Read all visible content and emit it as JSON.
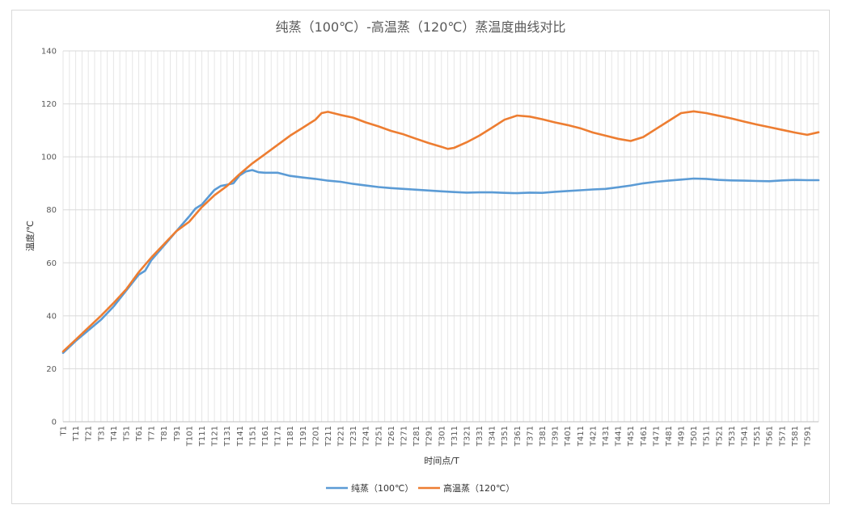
{
  "chart_data": {
    "type": "line",
    "title": "纯蒸（100℃）-高温蒸（120℃）蒸温度曲线对比",
    "xlabel": "时间点/T",
    "ylabel": "温度/℃",
    "ylim": [
      0,
      140
    ],
    "yticks": [
      0,
      20,
      40,
      60,
      80,
      100,
      120,
      140
    ],
    "x_range": [
      1,
      600
    ],
    "x_ticks": [
      "T1",
      "T11",
      "T21",
      "T31",
      "T41",
      "T51",
      "T61",
      "T71",
      "T81",
      "T91",
      "T101",
      "T111",
      "T121",
      "T131",
      "T141",
      "T151",
      "T161",
      "T171",
      "T181",
      "T191",
      "T201",
      "T211",
      "T221",
      "T231",
      "T241",
      "T251",
      "T261",
      "T271",
      "T281",
      "T291",
      "T301",
      "T311",
      "T321",
      "T331",
      "T341",
      "T351",
      "T361",
      "T371",
      "T381",
      "T391",
      "T401",
      "T411",
      "T421",
      "T431",
      "T441",
      "T451",
      "T461",
      "T471",
      "T481",
      "T491",
      "T501",
      "T511",
      "T521",
      "T531",
      "T541",
      "T551",
      "T561",
      "T571",
      "T581",
      "T591"
    ],
    "grid": true,
    "legend_position": "bottom",
    "series": [
      {
        "name": "纯蒸（100℃）",
        "color": "#5b9bd5",
        "points": [
          [
            1,
            26
          ],
          [
            11,
            30.5
          ],
          [
            21,
            34.5
          ],
          [
            31,
            38.5
          ],
          [
            41,
            43.5
          ],
          [
            51,
            49.5
          ],
          [
            61,
            55.5
          ],
          [
            66,
            57
          ],
          [
            71,
            61
          ],
          [
            81,
            66.5
          ],
          [
            91,
            72
          ],
          [
            101,
            77.5
          ],
          [
            106,
            80.5
          ],
          [
            111,
            82
          ],
          [
            121,
            87.5
          ],
          [
            126,
            89
          ],
          [
            131,
            89.5
          ],
          [
            136,
            90
          ],
          [
            141,
            93
          ],
          [
            146,
            94.5
          ],
          [
            151,
            95
          ],
          [
            156,
            94.2
          ],
          [
            161,
            94
          ],
          [
            171,
            94
          ],
          [
            181,
            92.8
          ],
          [
            191,
            92.2
          ],
          [
            201,
            91.7
          ],
          [
            211,
            91
          ],
          [
            221,
            90.6
          ],
          [
            231,
            89.8
          ],
          [
            241,
            89.2
          ],
          [
            251,
            88.6
          ],
          [
            261,
            88.2
          ],
          [
            271,
            87.9
          ],
          [
            281,
            87.6
          ],
          [
            291,
            87.3
          ],
          [
            301,
            87
          ],
          [
            311,
            86.7
          ],
          [
            321,
            86.5
          ],
          [
            331,
            86.6
          ],
          [
            341,
            86.6
          ],
          [
            351,
            86.4
          ],
          [
            361,
            86.3
          ],
          [
            371,
            86.5
          ],
          [
            381,
            86.4
          ],
          [
            391,
            86.8
          ],
          [
            401,
            87.1
          ],
          [
            411,
            87.4
          ],
          [
            421,
            87.7
          ],
          [
            431,
            87.9
          ],
          [
            441,
            88.5
          ],
          [
            451,
            89.2
          ],
          [
            461,
            90
          ],
          [
            471,
            90.6
          ],
          [
            481,
            91
          ],
          [
            491,
            91.4
          ],
          [
            501,
            91.8
          ],
          [
            511,
            91.7
          ],
          [
            521,
            91.3
          ],
          [
            531,
            91.1
          ],
          [
            541,
            91
          ],
          [
            551,
            90.9
          ],
          [
            561,
            90.8
          ],
          [
            571,
            91.1
          ],
          [
            581,
            91.3
          ],
          [
            591,
            91.2
          ],
          [
            600,
            91.2
          ]
        ]
      },
      {
        "name": "高温蒸（120℃）",
        "color": "#ed7d31",
        "points": [
          [
            1,
            26.5
          ],
          [
            11,
            31
          ],
          [
            21,
            35.5
          ],
          [
            31,
            40
          ],
          [
            41,
            44.8
          ],
          [
            51,
            50
          ],
          [
            61,
            56.5
          ],
          [
            71,
            62
          ],
          [
            81,
            67
          ],
          [
            91,
            72
          ],
          [
            101,
            75.5
          ],
          [
            111,
            81
          ],
          [
            121,
            85.5
          ],
          [
            131,
            89
          ],
          [
            141,
            93.5
          ],
          [
            151,
            97.5
          ],
          [
            161,
            101
          ],
          [
            171,
            104.5
          ],
          [
            181,
            108
          ],
          [
            191,
            111
          ],
          [
            201,
            114
          ],
          [
            206,
            116.5
          ],
          [
            211,
            117
          ],
          [
            221,
            115.8
          ],
          [
            231,
            114.8
          ],
          [
            241,
            113
          ],
          [
            251,
            111.5
          ],
          [
            261,
            109.8
          ],
          [
            271,
            108.5
          ],
          [
            281,
            106.8
          ],
          [
            291,
            105.2
          ],
          [
            301,
            103.8
          ],
          [
            306,
            103
          ],
          [
            311,
            103.4
          ],
          [
            321,
            105.5
          ],
          [
            331,
            108
          ],
          [
            341,
            111
          ],
          [
            351,
            114
          ],
          [
            361,
            115.6
          ],
          [
            371,
            115.2
          ],
          [
            381,
            114.2
          ],
          [
            391,
            113
          ],
          [
            401,
            112
          ],
          [
            411,
            110.8
          ],
          [
            421,
            109.2
          ],
          [
            431,
            108
          ],
          [
            441,
            106.8
          ],
          [
            451,
            106
          ],
          [
            461,
            107.5
          ],
          [
            471,
            110.5
          ],
          [
            481,
            113.5
          ],
          [
            491,
            116.5
          ],
          [
            501,
            117.2
          ],
          [
            511,
            116.5
          ],
          [
            521,
            115.5
          ],
          [
            531,
            114.5
          ],
          [
            541,
            113.3
          ],
          [
            551,
            112.2
          ],
          [
            561,
            111.2
          ],
          [
            571,
            110.2
          ],
          [
            581,
            109.2
          ],
          [
            591,
            108.3
          ],
          [
            600,
            109.3
          ]
        ]
      }
    ]
  }
}
